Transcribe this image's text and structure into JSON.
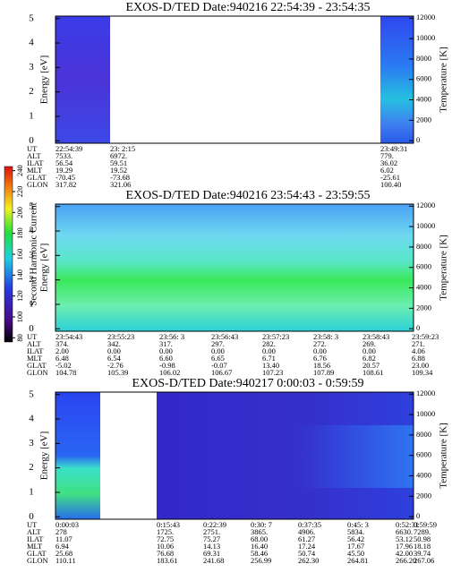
{
  "chart_data": [
    {
      "type": "heatmap",
      "title": "EXOS-D/TED   Date:940216  22:54:39 - 23:54:35",
      "ylabel": "Energy [eV]",
      "y2label": "Temperature [K]",
      "ylim": [
        -0.1,
        5.1
      ],
      "yticks": [
        0,
        1,
        2,
        3,
        4,
        5
      ],
      "y2lim": [
        -250,
        12200
      ],
      "y2ticks": [
        0,
        2000,
        4000,
        6000,
        8000,
        10000,
        12000
      ],
      "table_rows": [
        {
          "label": "UT",
          "values": [
            "22:54:39",
            "23: 2:15",
            "23:49:31"
          ]
        },
        {
          "label": "ALT",
          "values": [
            "7533.",
            "6972.",
            "779."
          ]
        },
        {
          "label": "ILAT",
          "values": [
            "56.54",
            "59.51",
            "36.02"
          ]
        },
        {
          "label": "MLT",
          "values": [
            "19.29",
            "19.52",
            "6.02"
          ]
        },
        {
          "label": "GLAT",
          "values": [
            "-70.45",
            "-73.68",
            "-25.61"
          ]
        },
        {
          "label": "GLON",
          "values": [
            "317.82",
            "321.06",
            "100.40"
          ]
        }
      ]
    },
    {
      "type": "heatmap",
      "title": "EXOS-D/TED   Date:940216  23:54:43 - 23:59:55",
      "ylabel": "Energy [eV]",
      "y2label": "Temperature [K]",
      "ylim": [
        -0.1,
        5.1
      ],
      "yticks": [
        0,
        1,
        2,
        3,
        4,
        5
      ],
      "y2lim": [
        -250,
        12200
      ],
      "y2ticks": [
        0,
        2000,
        4000,
        6000,
        8000,
        10000,
        12000
      ],
      "table_rows": [
        {
          "label": "UT",
          "values": [
            "23:54:43",
            "23:55:23",
            "23:56: 3",
            "23:56:43",
            "23:57:23",
            "23:58: 3",
            "23:58:43",
            "23:59:23"
          ]
        },
        {
          "label": "ALT",
          "values": [
            "374.",
            "342.",
            "317.",
            "297.",
            "282.",
            "272.",
            "269.",
            "271."
          ]
        },
        {
          "label": "ILAT",
          "values": [
            "2.00",
            "0.00",
            "0.00",
            "0.00",
            "0.00",
            "0.00",
            "0.00",
            "4.06"
          ]
        },
        {
          "label": "MLT",
          "values": [
            "6.48",
            "6.54",
            "6.60",
            "6.65",
            "6.71",
            "6.76",
            "6.82",
            "6.88"
          ]
        },
        {
          "label": "GLAT",
          "values": [
            "-5.02",
            "-2.76",
            "-0.98",
            "-0.07",
            "13.40",
            "18.56",
            "20.57",
            "23.00"
          ]
        },
        {
          "label": "GLON",
          "values": [
            "104.78",
            "105.39",
            "106.02",
            "106.67",
            "107.23",
            "107.89",
            "108.61",
            "109.34"
          ]
        }
      ]
    },
    {
      "type": "heatmap",
      "title": "EXOS-D/TED   Date:940217  0:00:03 - 0:59:59",
      "ylabel": "Energy [eV]",
      "y2label": "Temperature [K]",
      "ylim": [
        -0.1,
        5.1
      ],
      "yticks": [
        0,
        1,
        2,
        3,
        4,
        5
      ],
      "y2lim": [
        -250,
        12200
      ],
      "y2ticks": [
        0,
        2000,
        4000,
        6000,
        8000,
        10000,
        12000
      ],
      "table_rows": [
        {
          "label": "UT",
          "values": [
            "0:00:03",
            "0:15:43",
            "0:22:39",
            "0:30: 7",
            "0:37:35",
            "0:45: 3",
            "0:52:31",
            "0:59:59"
          ]
        },
        {
          "label": "ALT",
          "values": [
            "278",
            "1725.",
            "2751.",
            "3865.",
            "4906.",
            "5834.",
            "6630.",
            "7289."
          ]
        },
        {
          "label": "ILAT",
          "values": [
            "11.07",
            "72.75",
            "75.27",
            "68.00",
            "61.27",
            "56.42",
            "53.12",
            "50.98"
          ]
        },
        {
          "label": "MLT",
          "values": [
            "6.94",
            "10.06",
            "14.13",
            "16.40",
            "17.24",
            "17.67",
            "17.96",
            "18.18"
          ]
        },
        {
          "label": "GLAT",
          "values": [
            "25.68",
            "76.68",
            "69.31",
            "58.46",
            "50.74",
            "45.50",
            "42.00",
            "39.74"
          ]
        },
        {
          "label": "GLON",
          "values": [
            "110.11",
            "183.61",
            "241.68",
            "256.99",
            "262.30",
            "264.81",
            "266.20",
            "267.06"
          ]
        }
      ]
    },
    {
      "type": "colorbar",
      "label": "Second Harmonic Current",
      "lim": [
        76,
        244
      ],
      "ticks": [
        80,
        100,
        120,
        140,
        160,
        180,
        200,
        220,
        240
      ]
    }
  ]
}
